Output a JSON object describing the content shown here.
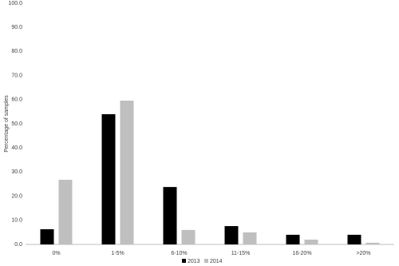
{
  "chart_data": {
    "type": "bar",
    "y_label": "Percentage of samples",
    "categories": [
      "0%",
      "1-5%",
      "6-10%",
      "11-15%",
      "16-20%",
      ">20%"
    ],
    "series": [
      {
        "name": "2013",
        "color": "#000000",
        "values": [
          6.3,
          54.0,
          23.8,
          7.6,
          4.0,
          4.0
        ]
      },
      {
        "name": "2014",
        "color": "#bfbfbf",
        "values": [
          26.8,
          59.6,
          6.0,
          5.0,
          2.0,
          0.7
        ]
      }
    ],
    "ylim": [
      0,
      100
    ],
    "yticks": [
      {
        "value": 0,
        "label": "0.0"
      },
      {
        "value": 10,
        "label": "10.0"
      },
      {
        "value": 20,
        "label": "20.0"
      },
      {
        "value": 30,
        "label": "30.0"
      },
      {
        "value": 40,
        "label": "40.0"
      },
      {
        "value": 50,
        "label": "50.0"
      },
      {
        "value": 60,
        "label": "60.0"
      },
      {
        "value": 70,
        "label": "70.0"
      },
      {
        "value": 80,
        "label": "80.0"
      },
      {
        "value": 90,
        "label": "90.0"
      },
      {
        "value": 100,
        "label": "100.0"
      }
    ],
    "grid": false,
    "legend": "bottom"
  }
}
